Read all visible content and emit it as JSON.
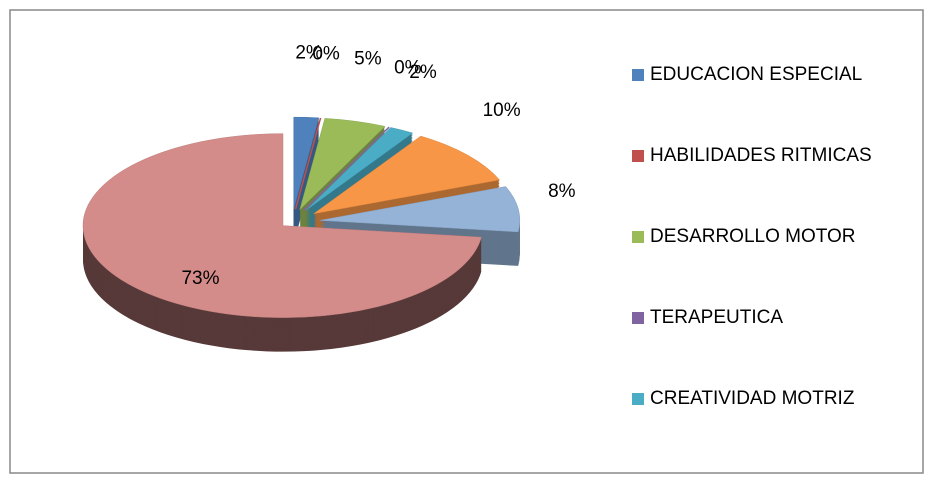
{
  "chart_data": {
    "type": "pie",
    "categories": [
      "EDUCACION ESPECIAL",
      "HABILIDADES RITMICAS",
      "DESARROLLO MOTOR",
      "TERAPEUTICA",
      "CREATIVIDAD MOTRIZ",
      null,
      null,
      null
    ],
    "values": [
      2,
      0,
      5,
      0,
      2,
      10,
      8,
      73
    ],
    "value_labels": [
      "2%",
      "0%",
      "5%",
      "0%",
      "2%",
      "10%",
      "8%",
      "73%"
    ],
    "colors": [
      "#4f81bd",
      "#c0504d",
      "#9bbb59",
      "#8064a2",
      "#4bacc6",
      "#f79646",
      "#95b3d7",
      "#d48c8a"
    ],
    "legend": "right"
  }
}
